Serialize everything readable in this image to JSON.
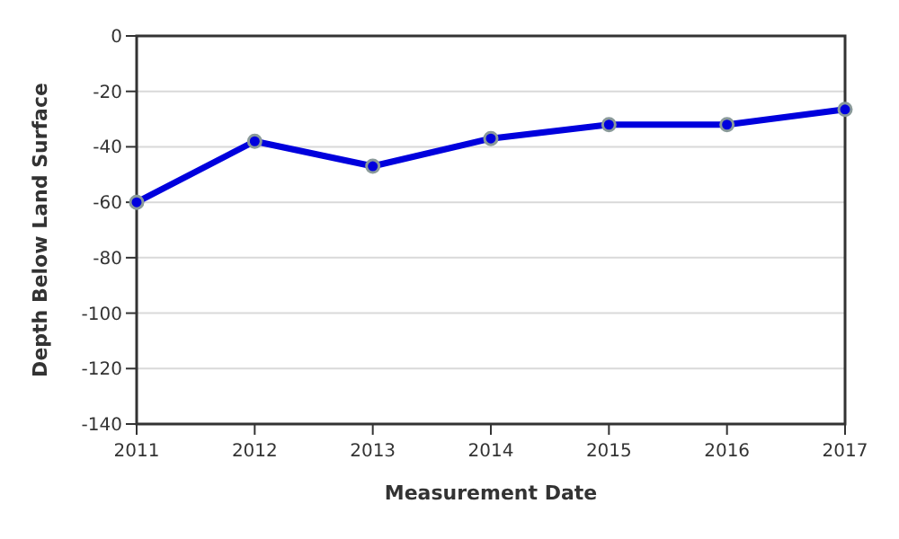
{
  "chart_data": {
    "type": "line",
    "xlabel": "Measurement Date",
    "ylabel": "Depth Below Land Surface",
    "x": [
      2011,
      2012,
      2013,
      2014,
      2015,
      2016,
      2017
    ],
    "series": [
      {
        "color": "#0000dd",
        "values": [
          -60,
          -38,
          -47,
          -37,
          -32,
          -32,
          -26.5
        ]
      }
    ],
    "xlim": [
      2011,
      2017
    ],
    "xticks": [
      2011,
      2012,
      2013,
      2014,
      2015,
      2016,
      2017
    ],
    "ylim": [
      -140,
      0
    ],
    "yticks": [
      -140,
      -120,
      -100,
      -80,
      -60,
      -40,
      -20,
      0
    ],
    "grid": "y",
    "marker": "circle",
    "line_style": "solid"
  }
}
